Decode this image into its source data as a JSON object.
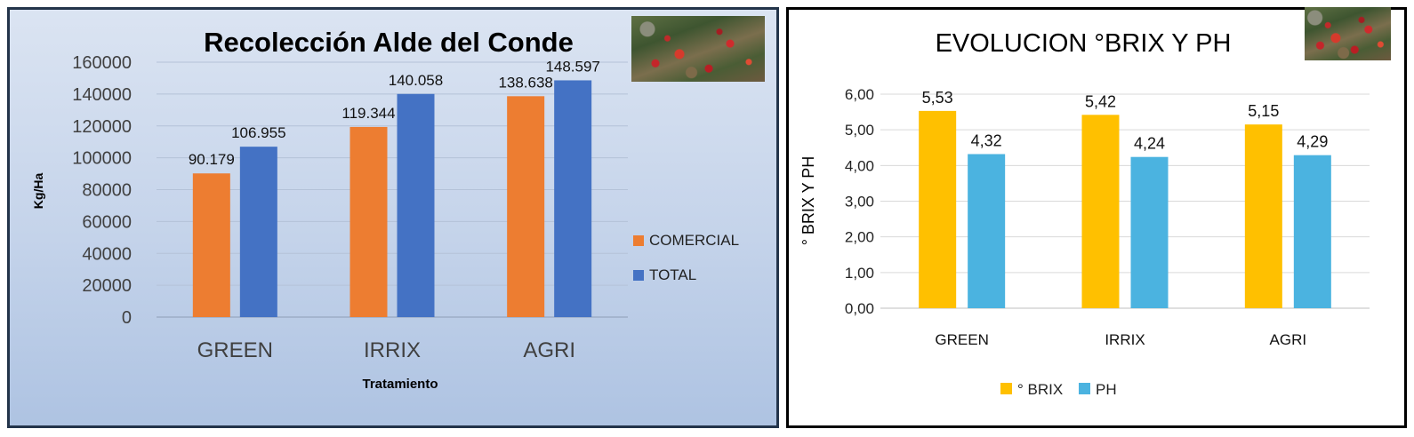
{
  "chart_data": [
    {
      "type": "bar",
      "title": "Recolección Alde del Conde",
      "xlabel": "Tratamiento",
      "ylabel": "Kg/Ha",
      "ylim": [
        0,
        160000
      ],
      "yticks": [
        "0",
        "20000",
        "40000",
        "60000",
        "80000",
        "100000",
        "120000",
        "140000",
        "160000"
      ],
      "categories": [
        "GREEN",
        "IRRIX",
        "AGRI"
      ],
      "series": [
        {
          "name": "COMERCIAL",
          "color": "#ed7d31",
          "values": [
            90179,
            119344,
            138638
          ],
          "labels": [
            "90.179",
            "119.344",
            "138.638"
          ]
        },
        {
          "name": "TOTAL",
          "color": "#4472c4",
          "values": [
            106955,
            140058,
            148597
          ],
          "labels": [
            "106.955",
            "140.058",
            "148.597"
          ]
        }
      ],
      "legend": "right",
      "grid": true
    },
    {
      "type": "bar",
      "title": "EVOLUCION °BRIX Y PH",
      "xlabel": "",
      "ylabel": "° BRIX Y PH",
      "ylim": [
        0,
        6
      ],
      "yticks": [
        "0,00",
        "1,00",
        "2,00",
        "3,00",
        "4,00",
        "5,00",
        "6,00"
      ],
      "categories": [
        "GREEN",
        "IRRIX",
        "AGRI"
      ],
      "series": [
        {
          "name": "° BRIX",
          "color": "#ffc000",
          "values": [
            5.53,
            5.42,
            5.15
          ],
          "labels": [
            "5,53",
            "5,42",
            "5,15"
          ]
        },
        {
          "name": "PH",
          "color": "#4bb3e0",
          "values": [
            4.32,
            4.24,
            4.29
          ],
          "labels": [
            "4,32",
            "4,24",
            "4,29"
          ]
        }
      ],
      "legend": "bottom",
      "grid": true
    }
  ]
}
